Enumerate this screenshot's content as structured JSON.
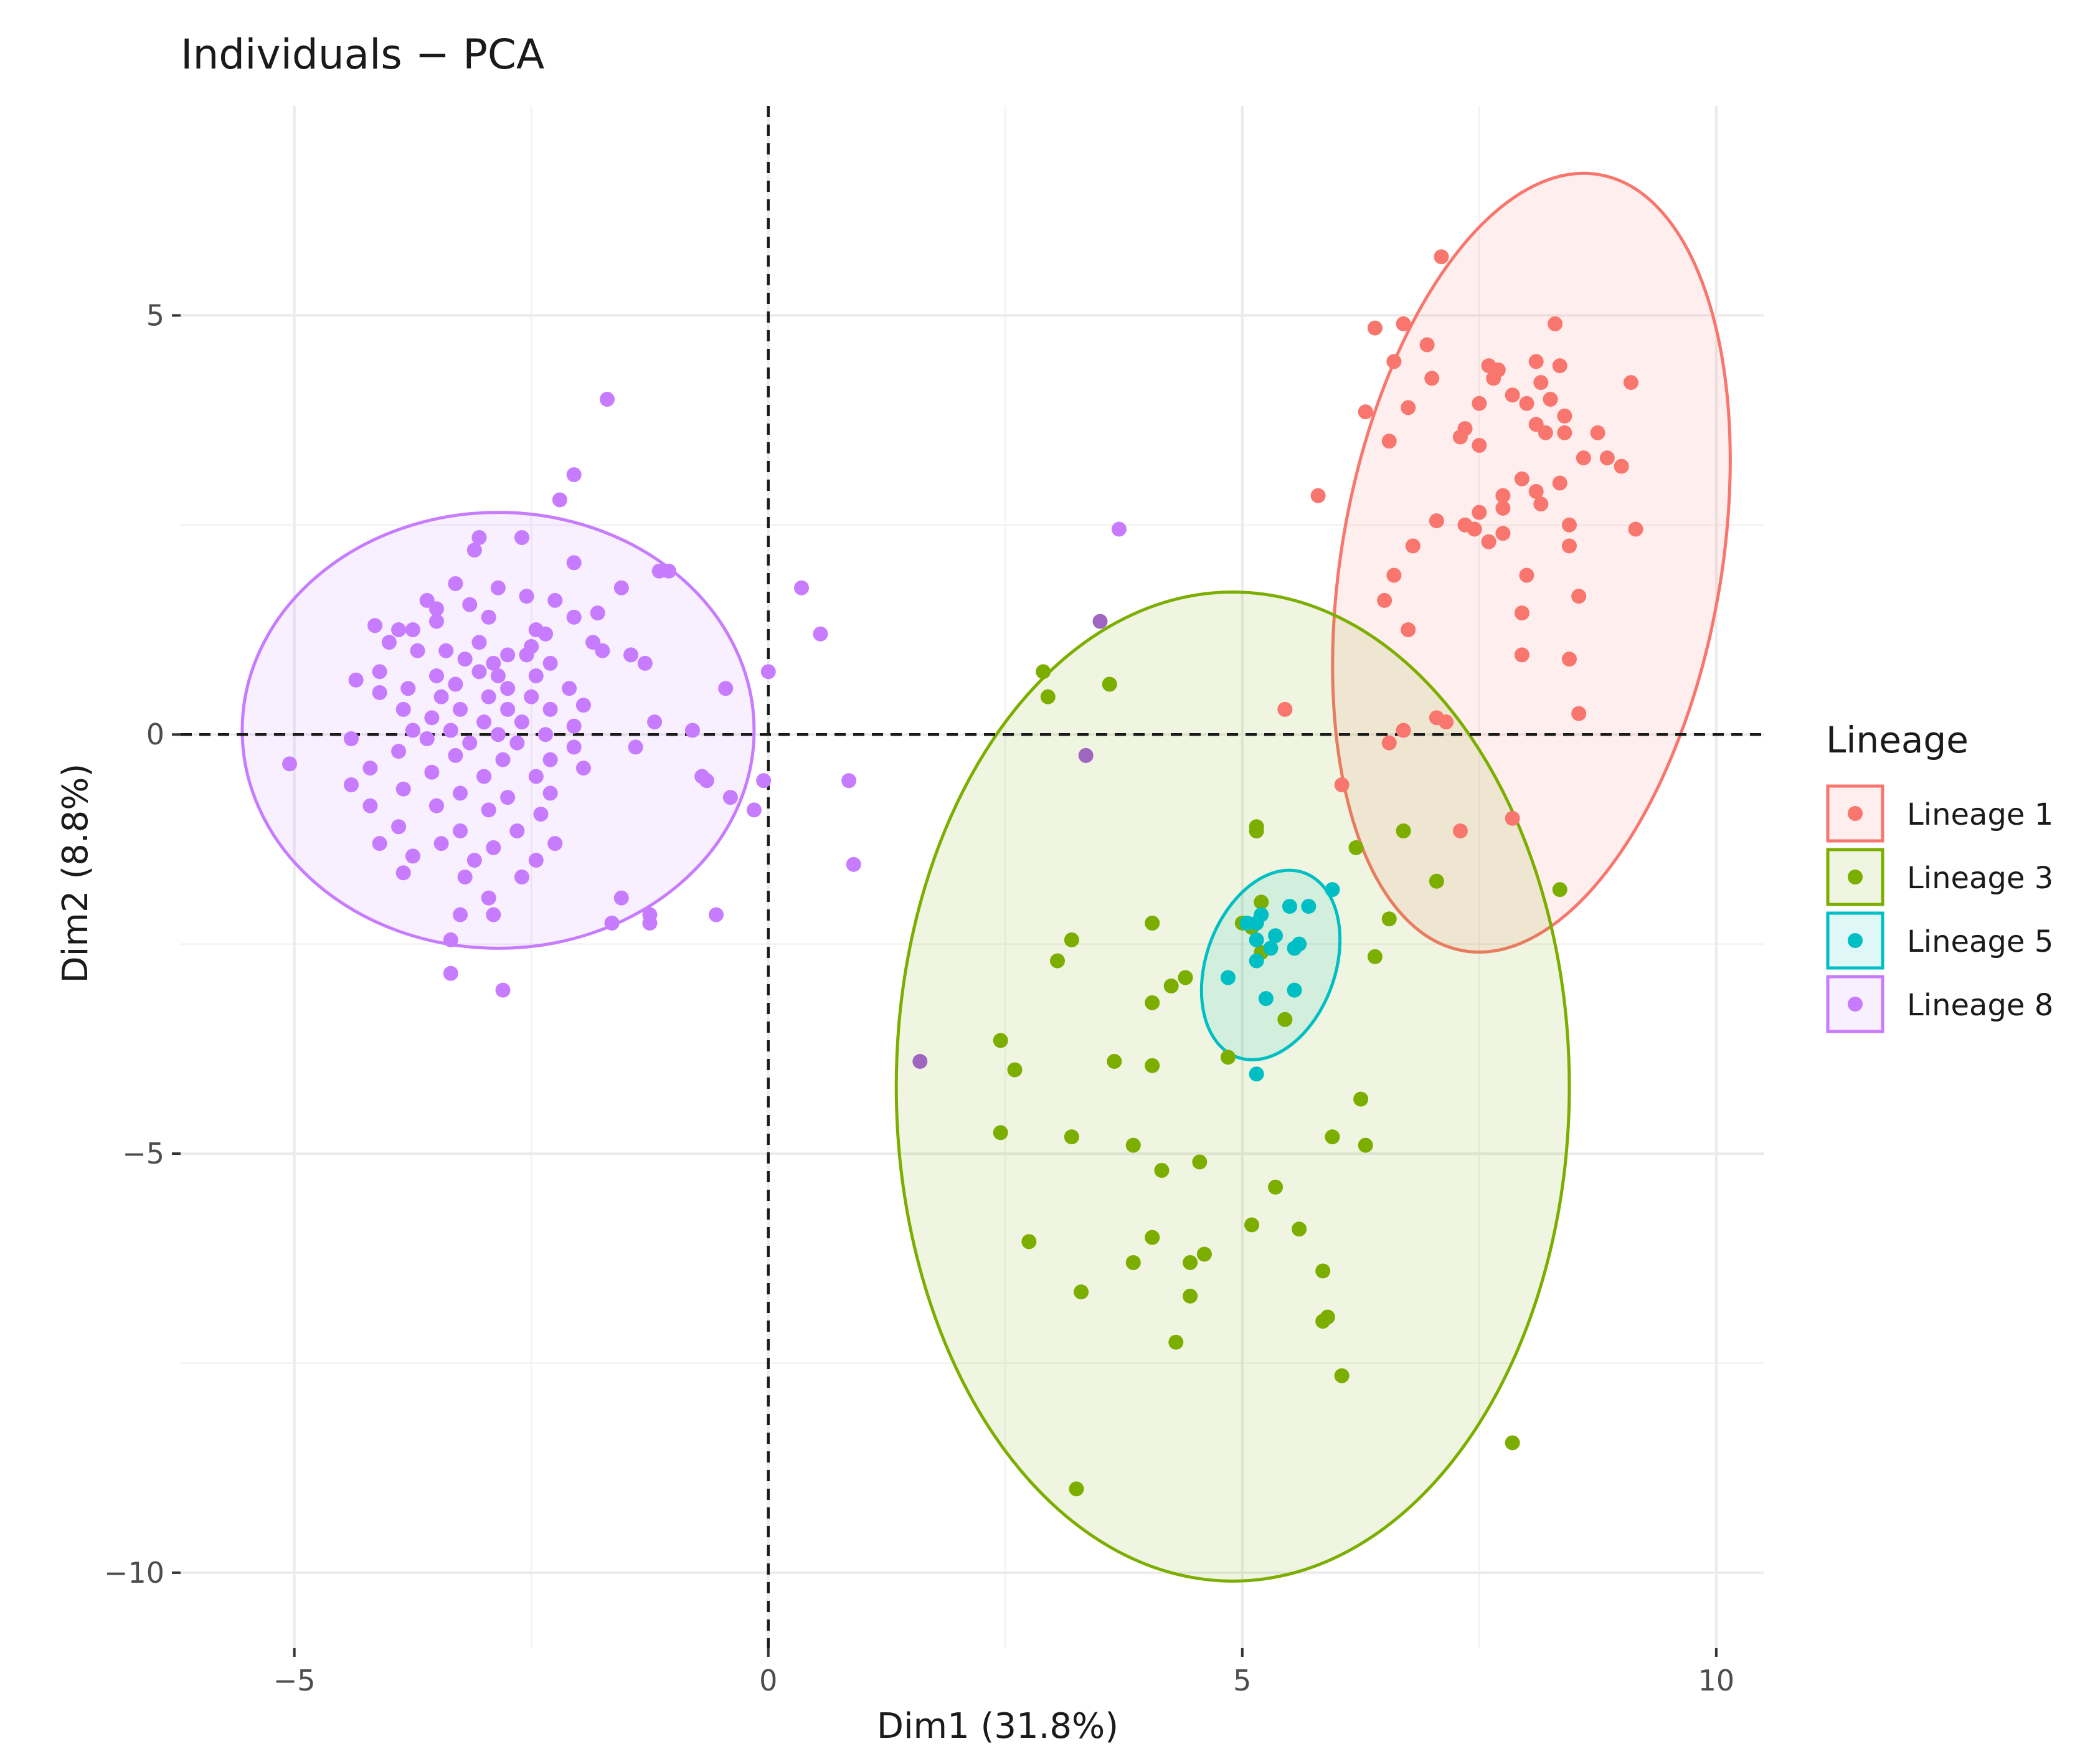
{
  "chart_data": {
    "type": "scatter",
    "title": "Individuals − PCA",
    "xlabel": "Dim1 (31.8%)",
    "ylabel": "Dim2 (8.8%)",
    "xlim": [
      -6.2,
      10.5
    ],
    "ylim": [
      -10.9,
      7.5
    ],
    "x_ticks": [
      -5,
      0,
      5,
      10
    ],
    "x_tick_labels": [
      "−5",
      "0",
      "5",
      "10"
    ],
    "y_ticks": [
      5,
      0,
      -5,
      -10
    ],
    "y_tick_labels": [
      "5",
      "0",
      "−5",
      "−10"
    ],
    "grid": true,
    "reference_lines": {
      "x": 0,
      "y": 0
    },
    "legend": {
      "title": "Lineage",
      "position": "right"
    },
    "series": [
      {
        "name": "Lineage 1",
        "color": "#F8766D",
        "ellipse": {
          "cx": 8.05,
          "cy": 2.05,
          "rx": 2.0,
          "ry": 4.7,
          "rotation_deg": 10
        },
        "points": [
          [
            7.1,
            5.7
          ],
          [
            6.7,
            4.9
          ],
          [
            6.4,
            4.85
          ],
          [
            6.95,
            4.65
          ],
          [
            6.6,
            4.45
          ],
          [
            7.6,
            4.4
          ],
          [
            7.7,
            4.35
          ],
          [
            8.3,
            4.9
          ],
          [
            8.1,
            4.45
          ],
          [
            8.35,
            4.4
          ],
          [
            7.65,
            4.25
          ],
          [
            8.15,
            4.2
          ],
          [
            7.0,
            4.25
          ],
          [
            9.1,
            4.2
          ],
          [
            7.85,
            4.05
          ],
          [
            8.25,
            4.0
          ],
          [
            8.0,
            3.95
          ],
          [
            6.75,
            3.9
          ],
          [
            7.5,
            3.95
          ],
          [
            8.4,
            3.8
          ],
          [
            6.3,
            3.85
          ],
          [
            7.35,
            3.65
          ],
          [
            7.3,
            3.55
          ],
          [
            8.1,
            3.7
          ],
          [
            8.2,
            3.6
          ],
          [
            8.75,
            3.6
          ],
          [
            8.4,
            3.6
          ],
          [
            6.55,
            3.5
          ],
          [
            7.5,
            3.45
          ],
          [
            8.6,
            3.3
          ],
          [
            8.85,
            3.3
          ],
          [
            9.0,
            3.2
          ],
          [
            7.95,
            3.05
          ],
          [
            8.35,
            3.0
          ],
          [
            5.8,
            2.85
          ],
          [
            8.1,
            2.9
          ],
          [
            7.75,
            2.85
          ],
          [
            7.75,
            2.7
          ],
          [
            8.15,
            2.75
          ],
          [
            7.5,
            2.65
          ],
          [
            7.05,
            2.55
          ],
          [
            7.35,
            2.5
          ],
          [
            7.45,
            2.45
          ],
          [
            8.45,
            2.5
          ],
          [
            9.15,
            2.45
          ],
          [
            7.75,
            2.4
          ],
          [
            7.6,
            2.3
          ],
          [
            6.8,
            2.25
          ],
          [
            8.45,
            2.25
          ],
          [
            6.6,
            1.9
          ],
          [
            8.0,
            1.9
          ],
          [
            8.55,
            1.65
          ],
          [
            6.5,
            1.6
          ],
          [
            7.95,
            1.45
          ],
          [
            6.75,
            1.25
          ],
          [
            7.95,
            0.95
          ],
          [
            8.45,
            0.9
          ],
          [
            5.45,
            0.3
          ],
          [
            8.55,
            0.25
          ],
          [
            7.05,
            0.2
          ],
          [
            7.15,
            0.15
          ],
          [
            6.7,
            0.05
          ],
          [
            6.55,
            -0.1
          ],
          [
            6.05,
            -0.6
          ],
          [
            7.85,
            -1.0
          ],
          [
            7.3,
            -1.15
          ]
        ]
      },
      {
        "name": "Lineage 3",
        "color": "#7CAE00",
        "ellipse": {
          "cx": 4.9,
          "cy": -4.2,
          "rx": 3.55,
          "ry": 5.9,
          "rotation_deg": 0
        },
        "points": [
          [
            2.9,
            0.75
          ],
          [
            3.6,
            0.6
          ],
          [
            2.95,
            0.45
          ],
          [
            5.15,
            -1.1
          ],
          [
            5.15,
            -1.15
          ],
          [
            6.2,
            -1.35
          ],
          [
            6.7,
            -1.15
          ],
          [
            5.2,
            -2.0
          ],
          [
            7.05,
            -1.75
          ],
          [
            8.35,
            -1.85
          ],
          [
            5.0,
            -2.25
          ],
          [
            4.05,
            -2.25
          ],
          [
            6.55,
            -2.2
          ],
          [
            5.1,
            -2.3
          ],
          [
            3.2,
            -2.45
          ],
          [
            6.4,
            -2.65
          ],
          [
            3.05,
            -2.7
          ],
          [
            5.2,
            -2.6
          ],
          [
            4.4,
            -2.9
          ],
          [
            4.25,
            -3.0
          ],
          [
            4.05,
            -3.2
          ],
          [
            5.45,
            -3.4
          ],
          [
            2.45,
            -3.65
          ],
          [
            3.65,
            -3.9
          ],
          [
            4.05,
            -3.95
          ],
          [
            4.85,
            -3.85
          ],
          [
            2.6,
            -4.0
          ],
          [
            6.25,
            -4.35
          ],
          [
            2.45,
            -4.75
          ],
          [
            3.2,
            -4.8
          ],
          [
            5.95,
            -4.8
          ],
          [
            6.3,
            -4.9
          ],
          [
            3.85,
            -4.9
          ],
          [
            4.15,
            -5.2
          ],
          [
            4.55,
            -5.1
          ],
          [
            5.35,
            -5.4
          ],
          [
            5.1,
            -5.85
          ],
          [
            5.6,
            -5.9
          ],
          [
            2.75,
            -6.05
          ],
          [
            4.05,
            -6.0
          ],
          [
            3.85,
            -6.3
          ],
          [
            4.45,
            -6.3
          ],
          [
            4.6,
            -6.2
          ],
          [
            5.85,
            -6.4
          ],
          [
            3.3,
            -6.65
          ],
          [
            4.45,
            -6.7
          ],
          [
            5.9,
            -6.95
          ],
          [
            5.85,
            -7.0
          ],
          [
            4.3,
            -7.25
          ],
          [
            6.05,
            -7.65
          ],
          [
            7.85,
            -8.45
          ],
          [
            3.25,
            -9.0
          ]
        ]
      },
      {
        "name": "Lineage 5",
        "color": "#00BFC4",
        "ellipse": {
          "cx": 5.3,
          "cy": -2.75,
          "rx": 0.68,
          "ry": 1.17,
          "rotation_deg": 20
        },
        "points": [
          [
            5.95,
            -1.85
          ],
          [
            5.5,
            -2.05
          ],
          [
            5.7,
            -2.05
          ],
          [
            5.2,
            -2.15
          ],
          [
            5.05,
            -2.25
          ],
          [
            5.15,
            -2.25
          ],
          [
            5.35,
            -2.4
          ],
          [
            5.15,
            -2.45
          ],
          [
            5.6,
            -2.5
          ],
          [
            5.55,
            -2.55
          ],
          [
            5.3,
            -2.55
          ],
          [
            5.15,
            -2.7
          ],
          [
            4.85,
            -2.9
          ],
          [
            5.55,
            -3.05
          ],
          [
            5.25,
            -3.15
          ],
          [
            5.15,
            -4.05
          ]
        ]
      },
      {
        "name": "Lineage 8",
        "color": "#C77CFF",
        "ellipse": {
          "cx": -2.85,
          "cy": 0.05,
          "rx": 2.7,
          "ry": 2.6,
          "rotation_deg": 0
        },
        "points": [
          [
            -1.7,
            4.0
          ],
          [
            -2.05,
            3.1
          ],
          [
            -2.2,
            2.8
          ],
          [
            -3.05,
            2.35
          ],
          [
            -3.1,
            2.2
          ],
          [
            -2.6,
            2.35
          ],
          [
            -2.05,
            2.05
          ],
          [
            -1.15,
            1.95
          ],
          [
            -1.05,
            1.95
          ],
          [
            -3.3,
            1.8
          ],
          [
            -2.85,
            1.75
          ],
          [
            -2.55,
            1.65
          ],
          [
            -1.55,
            1.75
          ],
          [
            -2.25,
            1.6
          ],
          [
            -3.6,
            1.6
          ],
          [
            -3.15,
            1.55
          ],
          [
            -3.5,
            1.5
          ],
          [
            -2.95,
            1.4
          ],
          [
            -2.05,
            1.4
          ],
          [
            -1.8,
            1.45
          ],
          [
            -4.15,
            1.3
          ],
          [
            -3.5,
            1.35
          ],
          [
            -3.75,
            1.25
          ],
          [
            -3.9,
            1.25
          ],
          [
            -2.45,
            1.25
          ],
          [
            -2.35,
            1.2
          ],
          [
            -4.0,
            1.1
          ],
          [
            -3.05,
            1.1
          ],
          [
            -1.85,
            1.1
          ],
          [
            -2.5,
            1.05
          ],
          [
            -3.7,
            1.0
          ],
          [
            -3.4,
            1.0
          ],
          [
            -2.75,
            0.95
          ],
          [
            -2.55,
            0.95
          ],
          [
            -1.75,
            1.0
          ],
          [
            -1.45,
            0.95
          ],
          [
            -1.3,
            0.85
          ],
          [
            -3.2,
            0.9
          ],
          [
            -2.9,
            0.85
          ],
          [
            -2.3,
            0.85
          ],
          [
            -4.1,
            0.75
          ],
          [
            -4.35,
            0.65
          ],
          [
            -3.5,
            0.7
          ],
          [
            -3.05,
            0.75
          ],
          [
            -2.85,
            0.7
          ],
          [
            -2.45,
            0.7
          ],
          [
            -3.8,
            0.55
          ],
          [
            -3.3,
            0.6
          ],
          [
            -2.75,
            0.55
          ],
          [
            -2.1,
            0.55
          ],
          [
            -4.1,
            0.5
          ],
          [
            -3.45,
            0.45
          ],
          [
            -2.95,
            0.45
          ],
          [
            -2.5,
            0.45
          ],
          [
            -1.95,
            0.35
          ],
          [
            -3.85,
            0.3
          ],
          [
            -3.25,
            0.3
          ],
          [
            -2.75,
            0.3
          ],
          [
            -2.3,
            0.3
          ],
          [
            -3.55,
            0.2
          ],
          [
            -3.0,
            0.15
          ],
          [
            -2.6,
            0.15
          ],
          [
            -2.05,
            0.1
          ],
          [
            -1.2,
            0.15
          ],
          [
            -3.75,
            0.05
          ],
          [
            -3.35,
            0.05
          ],
          [
            -2.85,
            0.0
          ],
          [
            -2.35,
            0.0
          ],
          [
            -0.8,
            0.05
          ],
          [
            -4.4,
            -0.05
          ],
          [
            -3.6,
            -0.05
          ],
          [
            -3.15,
            -0.1
          ],
          [
            -2.65,
            -0.1
          ],
          [
            -2.05,
            -0.15
          ],
          [
            -1.4,
            -0.15
          ],
          [
            -3.9,
            -0.2
          ],
          [
            -3.3,
            -0.25
          ],
          [
            -2.8,
            -0.3
          ],
          [
            -2.3,
            -0.3
          ],
          [
            -5.05,
            -0.35
          ],
          [
            -4.2,
            -0.4
          ],
          [
            -3.55,
            -0.45
          ],
          [
            -3.0,
            -0.5
          ],
          [
            -2.45,
            -0.5
          ],
          [
            -1.95,
            -0.4
          ],
          [
            -0.7,
            -0.5
          ],
          [
            -0.65,
            -0.55
          ],
          [
            -4.4,
            -0.6
          ],
          [
            -3.85,
            -0.65
          ],
          [
            -3.25,
            -0.7
          ],
          [
            -2.75,
            -0.75
          ],
          [
            -2.3,
            -0.7
          ],
          [
            -4.2,
            -0.85
          ],
          [
            -3.5,
            -0.85
          ],
          [
            -2.95,
            -0.9
          ],
          [
            -2.4,
            -0.95
          ],
          [
            -0.4,
            -0.75
          ],
          [
            -0.15,
            -0.9
          ],
          [
            -3.9,
            -1.1
          ],
          [
            -3.25,
            -1.15
          ],
          [
            -2.65,
            -1.15
          ],
          [
            -4.1,
            -1.3
          ],
          [
            -3.45,
            -1.3
          ],
          [
            -2.9,
            -1.35
          ],
          [
            -2.25,
            -1.3
          ],
          [
            -3.75,
            -1.45
          ],
          [
            -3.1,
            -1.5
          ],
          [
            -2.45,
            -1.5
          ],
          [
            -3.85,
            -1.65
          ],
          [
            -3.2,
            -1.7
          ],
          [
            -2.6,
            -1.7
          ],
          [
            -2.95,
            -1.95
          ],
          [
            -1.55,
            -1.95
          ],
          [
            -1.25,
            -2.15
          ],
          [
            -1.25,
            -2.25
          ],
          [
            -3.25,
            -2.15
          ],
          [
            -2.9,
            -2.15
          ],
          [
            -1.65,
            -2.25
          ],
          [
            -3.35,
            -2.45
          ],
          [
            -3.35,
            -2.85
          ],
          [
            -2.8,
            -3.05
          ],
          [
            -0.55,
            -2.15
          ],
          [
            -0.05,
            -0.55
          ],
          [
            0.0,
            0.75
          ],
          [
            -0.45,
            0.55
          ],
          [
            0.35,
            1.75
          ],
          [
            0.55,
            1.2
          ],
          [
            0.85,
            -0.55
          ],
          [
            0.9,
            -1.55
          ],
          [
            3.7,
            2.45
          ]
        ]
      }
    ],
    "extra_points": [
      {
        "x": 3.5,
        "y": 1.35,
        "color": "#9F66BF"
      },
      {
        "x": 3.35,
        "y": -0.25,
        "color": "#9F66BF"
      },
      {
        "x": 1.6,
        "y": -3.9,
        "color": "#9F66BF"
      }
    ]
  }
}
